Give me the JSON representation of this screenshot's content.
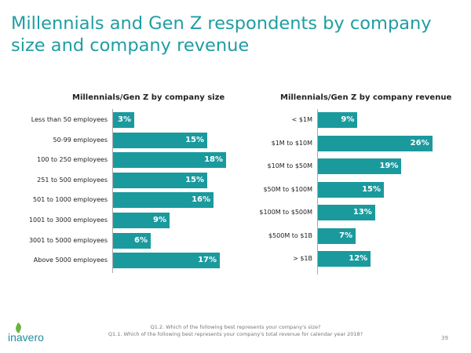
{
  "title": "Millennials and Gen Z respondents by company size and company revenue",
  "chart_data": [
    {
      "type": "bar",
      "orientation": "horizontal",
      "title": "Millennials/Gen Z by company size",
      "categories": [
        "Less than 50 employees",
        "50-99 employees",
        "100 to 250 employees",
        "251 to 500 employees",
        "501 to 1000 employees",
        "1001 to 3000 employees",
        "3001 to 5000 employees",
        "Above 5000 employees"
      ],
      "values": [
        3,
        15,
        18,
        15,
        16,
        9,
        6,
        17
      ],
      "labels": [
        "3%",
        "15%",
        "18%",
        "15%",
        "16%",
        "9%",
        "6%",
        "17%"
      ],
      "color": "#1b9a9e"
    },
    {
      "type": "bar",
      "orientation": "horizontal",
      "title": "Millennials/Gen Z by company revenue",
      "categories": [
        "< $1M",
        "$1M to $10M",
        "$10M to $50M",
        "$50M to $100M",
        "$100M to $500M",
        "$500M to $1B",
        "> $1B"
      ],
      "values": [
        9,
        26,
        19,
        15,
        13,
        7,
        12
      ],
      "labels": [
        "9%",
        "26%",
        "19%",
        "15%",
        "13%",
        "7%",
        "12%"
      ],
      "color": "#1b9a9e"
    }
  ],
  "footer": {
    "q1": "Q1.2. Which of the following best represents your company's size?",
    "q2": "Q1.1. Which of the following best represents your company's total revenue for calendar year 2018?",
    "page": "39",
    "logo": "inavero"
  }
}
